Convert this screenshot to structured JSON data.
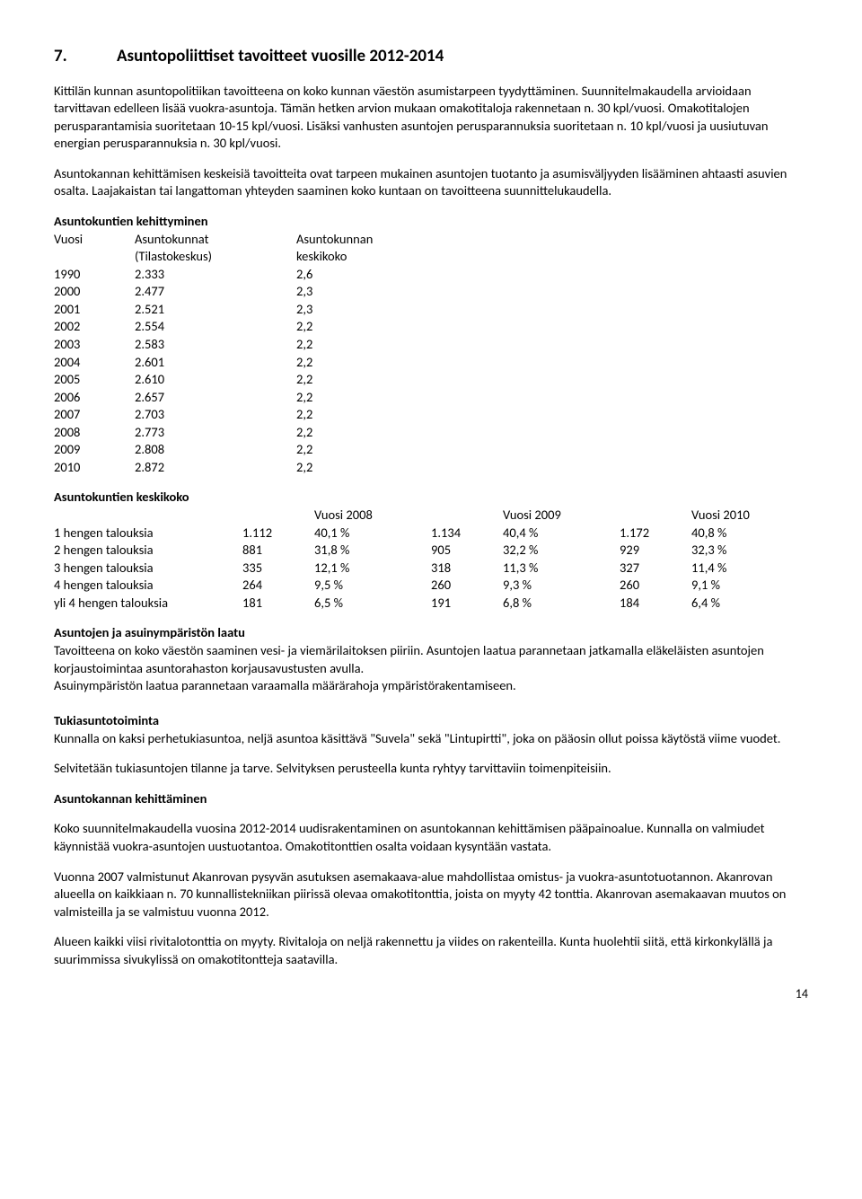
{
  "heading": {
    "num": "7.",
    "title": "Asuntopoliittiset tavoitteet vuosille 2012-2014"
  },
  "para1": "Kittilän kunnan asuntopolitiikan tavoitteena on koko kunnan väestön asumistarpeen tyydyttäminen. Suunnitelmakaudella arvioidaan tarvittavan edelleen lisää vuokra-asuntoja. Tämän hetken arvion mukaan omakotitaloja rakennetaan n. 30 kpl/vuosi. Omakotitalojen perusparantamisia suoritetaan 10-15 kpl/vuosi. Lisäksi vanhusten asuntojen perusparannuksia suoritetaan n. 10 kpl/vuosi ja uusiutuvan energian perusparannuksia n. 30 kpl/vuosi.",
  "para2": "Asuntokannan kehittämisen keskeisiä tavoitteita ovat tarpeen mukainen asuntojen tuotanto ja asumisväljyyden lisääminen ahtaasti asuvien osalta. Laajakaistan tai langattoman yhteyden saaminen koko kuntaan on tavoitteena suunnittelukaudella.",
  "kehit": {
    "title": "Asuntokuntien kehittyminen",
    "h_vuosi": "Vuosi",
    "h_asun1": "Asuntokunnat",
    "h_asun2": "(Tilastokeskus)",
    "h_kk1": "Asuntokunnan",
    "h_kk2": "keskikoko",
    "rows": [
      {
        "y": "1990",
        "a": "2.333",
        "k": "2,6"
      },
      {
        "y": "2000",
        "a": "2.477",
        "k": "2,3"
      },
      {
        "y": "2001",
        "a": "2.521",
        "k": "2,3"
      },
      {
        "y": "2002",
        "a": "2.554",
        "k": "2,2"
      },
      {
        "y": "2003",
        "a": "2.583",
        "k": "2,2"
      },
      {
        "y": "2004",
        "a": "2.601",
        "k": "2,2"
      },
      {
        "y": "2005",
        "a": "2.610",
        "k": "2,2"
      },
      {
        "y": "2006",
        "a": "2.657",
        "k": "2,2"
      },
      {
        "y": "2007",
        "a": "2.703",
        "k": "2,2"
      },
      {
        "y": "2008",
        "a": "2.773",
        "k": "2,2"
      },
      {
        "y": "2009",
        "a": "2.808",
        "k": "2,2"
      },
      {
        "y": "2010",
        "a": "2.872",
        "k": "2,2"
      }
    ]
  },
  "keskikoko": {
    "title": "Asuntokuntien keskikoko",
    "h2008": "Vuosi 2008",
    "h2009": "Vuosi 2009",
    "h2010": "Vuosi 2010",
    "rows": [
      {
        "l": "1 hengen talouksia",
        "n1": "1.112",
        "p1": "40,1 %",
        "n2": "1.134",
        "p2": "40,4 %",
        "n3": "1.172",
        "p3": "40,8 %"
      },
      {
        "l": "2 hengen talouksia",
        "n1": "881",
        "p1": "31,8 %",
        "n2": "905",
        "p2": "32,2 %",
        "n3": "929",
        "p3": "32,3 %"
      },
      {
        "l": "3 hengen talouksia",
        "n1": "335",
        "p1": "12,1 %",
        "n2": "318",
        "p2": "11,3 %",
        "n3": "327",
        "p3": "11,4 %"
      },
      {
        "l": "4 hengen talouksia",
        "n1": "264",
        "p1": "9,5 %",
        "n2": "260",
        "p2": "  9,3 %",
        "n3": "260",
        "p3": "  9,1 %"
      },
      {
        "l": "yli 4 hengen talouksia",
        "n1": "181",
        "p1": "6,5 %",
        "n2": "191",
        "p2": "  6,8 %",
        "n3": "184",
        "p3": "  6,4 %"
      }
    ]
  },
  "laatu": {
    "title": "Asuntojen ja asuinympäristön laatu",
    "p1": "Tavoitteena on koko väestön saaminen vesi- ja viemärilaitoksen piiriin. Asuntojen laatua parannetaan jatkamalla eläkeläisten asuntojen korjaustoimintaa asuntorahaston korjausavustusten avulla.",
    "p2": "Asuinympäristön laatua parannetaan varaamalla määrärahoja ympäristörakentamiseen."
  },
  "tuki": {
    "title": "Tukiasuntotoiminta",
    "p1": "Kunnalla on kaksi perhetukiasuntoa, neljä asuntoa käsittävä \"Suvela\" sekä \"Lintupirtti\", joka on pääosin ollut poissa käytöstä viime vuodet.",
    "p2": "Selvitetään tukiasuntojen tilanne ja tarve. Selvityksen perusteella kunta ryhtyy tarvittaviin toimenpiteisiin."
  },
  "kannan": {
    "title": "Asuntokannan kehittäminen",
    "p1": "Koko suunnitelmakaudella vuosina 2012-2014 uudisrakentaminen on asuntokannan kehittämisen pääpainoalue. Kunnalla on valmiudet käynnistää vuokra-asuntojen uustuotantoa. Omakotitonttien osalta voidaan kysyntään vastata.",
    "p2": "Vuonna 2007 valmistunut Akanrovan pysyvän asutuksen asemakaava-alue mahdollistaa omistus- ja vuokra-asuntotuotannon. Akanrovan alueella on kaikkiaan n. 70 kunnallistekniikan piirissä olevaa omakotitonttia, joista on myyty 42 tonttia. Akanrovan asemakaavan muutos on valmisteilla ja se valmistuu vuonna 2012.",
    "p3": "Alueen kaikki viisi rivitalotonttia on myyty. Rivitaloja on neljä rakennettu ja viides on rakenteilla. Kunta huolehtii siitä, että kirkonkylällä ja suurimmissa sivukylissä on omakotitontteja saatavilla."
  },
  "page": "14"
}
